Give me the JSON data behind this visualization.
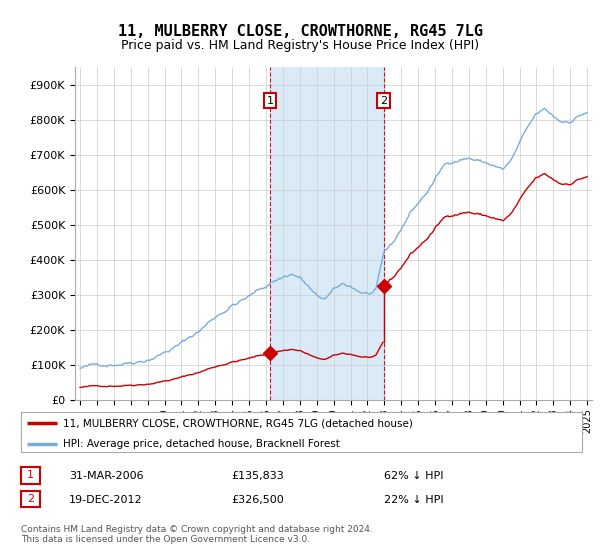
{
  "title": "11, MULBERRY CLOSE, CROWTHORNE, RG45 7LG",
  "subtitle": "Price paid vs. HM Land Registry's House Price Index (HPI)",
  "ytick_values": [
    0,
    100000,
    200000,
    300000,
    400000,
    500000,
    600000,
    700000,
    800000,
    900000
  ],
  "ylim": [
    0,
    950000
  ],
  "sale1_date": 2006.25,
  "sale1_price": 135833,
  "sale1_label": "1",
  "sale2_date": 2012.97,
  "sale2_price": 326500,
  "sale2_label": "2",
  "hpi_color": "#7aaddb",
  "price_color": "#cc0000",
  "shade_color": "#daeaf7",
  "legend_line1": "11, MULBERRY CLOSE, CROWTHORNE, RG45 7LG (detached house)",
  "legend_line2": "HPI: Average price, detached house, Bracknell Forest",
  "table_row1": [
    "1",
    "31-MAR-2006",
    "£135,833",
    "62% ↓ HPI"
  ],
  "table_row2": [
    "2",
    "19-DEC-2012",
    "£326,500",
    "22% ↓ HPI"
  ],
  "footnote": "Contains HM Land Registry data © Crown copyright and database right 2024.\nThis data is licensed under the Open Government Licence v3.0.",
  "background_color": "#ffffff"
}
